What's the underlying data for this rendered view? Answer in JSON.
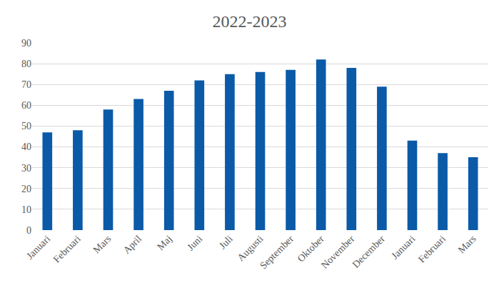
{
  "chart_data": {
    "type": "bar",
    "title": "2022-2023",
    "categories": [
      "Januari",
      "Februari",
      "Mars",
      "April",
      "Maj",
      "Juni",
      "Juli",
      "Augusti",
      "September",
      "Oktober",
      "November",
      "December",
      "Januari",
      "Februari",
      "Mars"
    ],
    "values": [
      47,
      48,
      58,
      63,
      67,
      72,
      75,
      76,
      77,
      82,
      78,
      69,
      43,
      37,
      35
    ],
    "color": "#0b5aa8",
    "ylim": [
      0,
      90
    ],
    "yticks": [
      0,
      10,
      20,
      30,
      40,
      50,
      60,
      70,
      80,
      90
    ],
    "grid": true
  }
}
